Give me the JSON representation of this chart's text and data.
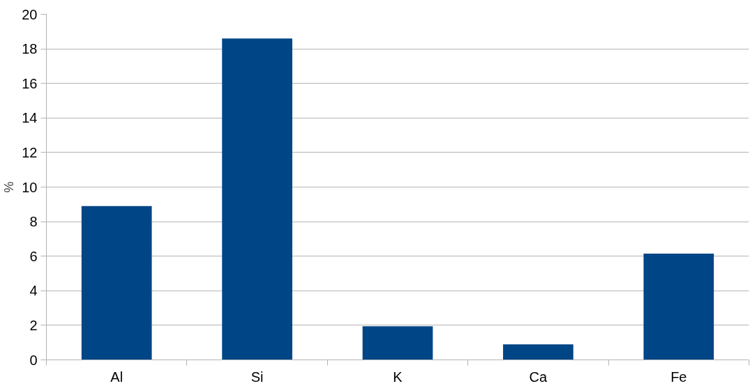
{
  "chart_data": {
    "type": "bar",
    "ylabel": "%",
    "categories": [
      "Al",
      "Si",
      "K",
      "Ca",
      "Fe"
    ],
    "values": [
      8.9,
      18.6,
      1.95,
      0.9,
      6.15
    ],
    "color": "#004586",
    "ylim": [
      0,
      20
    ],
    "yticks": [
      0,
      2,
      4,
      6,
      8,
      10,
      12,
      14,
      16,
      18,
      20
    ],
    "grid": "y"
  }
}
